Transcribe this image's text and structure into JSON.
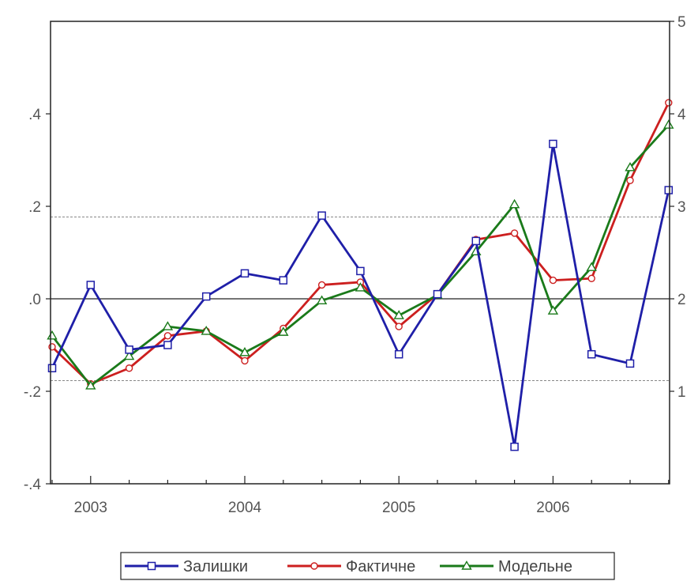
{
  "chart_data": {
    "type": "line",
    "title": "",
    "x": [
      "2002Q4",
      "2003Q1",
      "2003Q2",
      "2003Q3",
      "2003Q4",
      "2004Q1",
      "2004Q2",
      "2004Q3",
      "2004Q4",
      "2005Q1",
      "2005Q2",
      "2005Q3",
      "2005Q4",
      "2006Q1",
      "2006Q2",
      "2006Q3",
      "2006Q4"
    ],
    "x_tick_labels": [
      {
        "label": "2003",
        "index": 1
      },
      {
        "label": "2004",
        "index": 5
      },
      {
        "label": "2005",
        "index": 9
      },
      {
        "label": "2006",
        "index": 13
      }
    ],
    "left_axis": {
      "ylim": [
        -0.4,
        0.6
      ],
      "ticks": [
        {
          "value": -0.4,
          "label": "-.4"
        },
        {
          "value": -0.2,
          "label": "-.2"
        },
        {
          "value": 0.0,
          "label": ".0"
        },
        {
          "value": 0.2,
          "label": ".2"
        },
        {
          "value": 0.4,
          "label": ".4"
        }
      ]
    },
    "right_axis": {
      "ylim": [
        0,
        5
      ],
      "ticks": [
        {
          "value": 1,
          "label": "1"
        },
        {
          "value": 2,
          "label": "2"
        },
        {
          "value": 3,
          "label": "3"
        },
        {
          "value": 4,
          "label": "4"
        },
        {
          "value": 5,
          "label": "5"
        }
      ]
    },
    "reference_lines": {
      "zero": 0.0,
      "dashed": [
        0.177,
        -0.177
      ]
    },
    "series": [
      {
        "name": "Залишки",
        "axis": "left",
        "color": "#1f1fa8",
        "marker": "square",
        "values": [
          -0.15,
          0.03,
          -0.11,
          -0.1,
          0.005,
          0.055,
          0.04,
          0.18,
          0.06,
          -0.12,
          0.01,
          0.125,
          -0.32,
          0.335,
          -0.12,
          -0.14,
          0.235
        ]
      },
      {
        "name": "Фактичне",
        "axis": "right",
        "color": "#cc1f1f",
        "marker": "circle",
        "values": [
          1.48,
          1.08,
          1.25,
          1.6,
          1.65,
          1.33,
          1.68,
          2.15,
          2.18,
          1.7,
          2.05,
          2.64,
          2.71,
          2.2,
          2.22,
          3.28,
          4.12
        ]
      },
      {
        "name": "Модельне",
        "axis": "right",
        "color": "#1a7a1a",
        "marker": "triangle",
        "values": [
          1.6,
          1.06,
          1.38,
          1.7,
          1.65,
          1.42,
          1.64,
          1.98,
          2.12,
          1.82,
          2.04,
          2.51,
          3.02,
          1.87,
          2.34,
          3.42,
          3.88
        ]
      }
    ],
    "legend": {
      "placement": "bottom-center",
      "entries": [
        "Залишки",
        "Фактичне",
        "Модельне"
      ]
    }
  }
}
